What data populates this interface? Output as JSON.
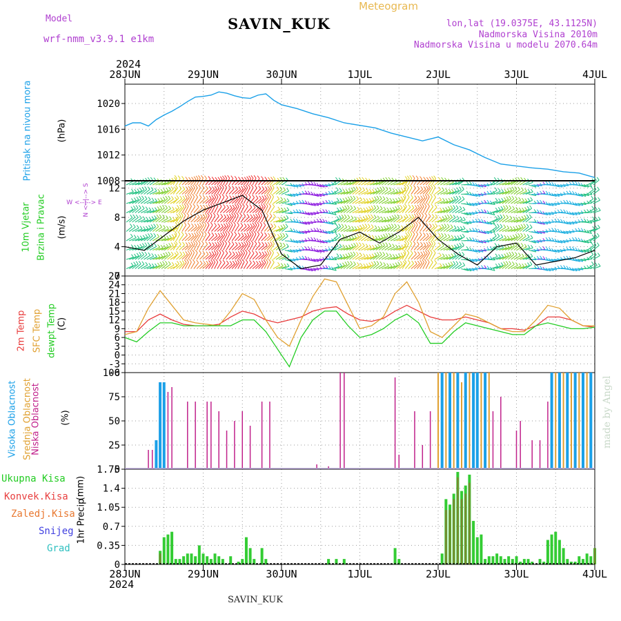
{
  "header": {
    "model_label": "Model",
    "model_name": "wrf-nmm_v3.9.1 e1km",
    "title": "SAVIN_KUK",
    "meteogram": "Meteogram",
    "coords": "lon,lat (19.0375E, 43.1125N)",
    "altitude": "Nadmorska Visina 2010m",
    "model_altitude": "Nadmorska Visina u modelu 2070.64m",
    "footer": "SAVIN_KUK",
    "credit": "made by Angel"
  },
  "time_axis": {
    "year": "2024",
    "labels": [
      "28JUN",
      "29JUN",
      "30JUN",
      "1JUL",
      "2JUL",
      "3JUL",
      "4JUL"
    ]
  },
  "colors": {
    "pressure": "#1aa0e8",
    "temp2m": "#e83a3a",
    "sfc_temp": "#e0a030",
    "dewpt": "#22cc22",
    "high_cloud": "#1aa0e8",
    "mid_cloud": "#e0a030",
    "low_cloud": "#c0208a",
    "total_precip": "#33cc33",
    "convective": "#e84040",
    "frozen": "#e87830",
    "snow": "#4040e0",
    "hail": "#30c0c0"
  },
  "panel_labels": {
    "pressure": {
      "name": "Pritisak na nivou mora",
      "unit": "(hPa)"
    },
    "wind": {
      "name1": "10m Vjetar",
      "name2": "Brzina i Pravac",
      "unit": "(m/s)",
      "compass_v": "N <--|--> S",
      "compass_h": "W <--|--> E"
    },
    "temp": {
      "t2m": "2m Temp",
      "sfc": "SFC Temp",
      "dew": "dewpt Temp",
      "unit": "(C)"
    },
    "cloud": {
      "high": "Visoka Oblacnost",
      "mid": "Srednja Oblacnost",
      "low": "Niska Oblacnost",
      "unit": "(%)"
    },
    "precip": {
      "total": "Ukupna Kisa",
      "conv": "Konvek.Kisa",
      "frozen": "Zaledj.Kisa",
      "snow": "Snijeg",
      "hail": "Grad",
      "name": "1hr Precip",
      "unit": "(mm)"
    }
  },
  "chart_data": [
    {
      "type": "line",
      "title": "Pritisak na nivou mora",
      "ylabel": "(hPa)",
      "ylim": [
        1008,
        1023
      ],
      "yticks": [
        1008,
        1012,
        1016,
        1020
      ],
      "x_days": [
        0,
        0.1,
        0.2,
        0.3,
        0.4,
        0.5,
        0.6,
        0.7,
        0.8,
        0.9,
        1.0,
        1.1,
        1.2,
        1.3,
        1.4,
        1.5,
        1.6,
        1.7,
        1.8,
        1.9,
        2.0,
        2.2,
        2.4,
        2.6,
        2.8,
        3.0,
        3.2,
        3.4,
        3.6,
        3.8,
        4.0,
        4.2,
        4.4,
        4.6,
        4.8,
        5.0,
        5.2,
        5.4,
        5.6,
        5.8,
        6.0
      ],
      "series": [
        {
          "values": [
            1016.5,
            1017.0,
            1017.0,
            1016.5,
            1017.5,
            1018.2,
            1018.8,
            1019.5,
            1020.3,
            1021.0,
            1021.1,
            1021.3,
            1021.8,
            1021.6,
            1021.2,
            1020.9,
            1020.8,
            1021.3,
            1021.5,
            1020.5,
            1019.8,
            1019.2,
            1018.4,
            1017.8,
            1017.0,
            1016.6,
            1016.2,
            1015.4,
            1014.8,
            1014.2,
            1014.8,
            1013.6,
            1012.8,
            1011.6,
            1010.6,
            1010.3,
            1010.0,
            1009.8,
            1009.4,
            1009.2,
            1008.5
          ]
        }
      ]
    },
    {
      "type": "line",
      "title": "10m Vjetar Brzina i Pravac",
      "ylabel": "(m/s)",
      "ylim": [
        0,
        13
      ],
      "yticks": [
        0,
        4,
        8,
        12
      ],
      "x_days": [
        0,
        0.25,
        0.5,
        0.75,
        1.0,
        1.25,
        1.5,
        1.75,
        2.0,
        2.25,
        2.5,
        2.75,
        3.0,
        3.25,
        3.5,
        3.75,
        4.0,
        4.25,
        4.5,
        4.75,
        5.0,
        5.25,
        5.5,
        5.75,
        6.0
      ],
      "series": [
        {
          "name": "speed",
          "values": [
            4,
            3.5,
            5.5,
            7.5,
            9,
            10,
            11,
            9,
            3,
            1,
            1.5,
            5,
            6,
            4.5,
            6,
            8,
            5,
            3,
            1.5,
            4,
            4.5,
            1.5,
            2,
            2.5,
            3.5
          ]
        }
      ]
    },
    {
      "type": "line",
      "title": "2m Temp / SFC Temp / dewpt Temp",
      "ylabel": "(C)",
      "ylim": [
        -6,
        27
      ],
      "yticks": [
        -6,
        -3,
        0,
        3,
        6,
        9,
        12,
        15,
        18,
        21,
        24,
        27
      ],
      "x_days": [
        0,
        0.15,
        0.3,
        0.45,
        0.6,
        0.75,
        0.9,
        1.05,
        1.2,
        1.35,
        1.5,
        1.65,
        1.8,
        1.95,
        2.1,
        2.25,
        2.4,
        2.55,
        2.7,
        2.85,
        3.0,
        3.15,
        3.3,
        3.45,
        3.6,
        3.75,
        3.9,
        4.05,
        4.2,
        4.35,
        4.5,
        4.65,
        4.8,
        4.95,
        5.1,
        5.25,
        5.4,
        5.55,
        5.7,
        5.85,
        6.0
      ],
      "series": [
        {
          "name": "2m Temp",
          "values": [
            8,
            8,
            12,
            14,
            12,
            10.5,
            10,
            10,
            10.5,
            13,
            15,
            14,
            12,
            11,
            12,
            13,
            15,
            16,
            16.5,
            14,
            12,
            11.5,
            12.5,
            15,
            17,
            15,
            13,
            12,
            12,
            13,
            12,
            11,
            9,
            9,
            8.5,
            10,
            13,
            13,
            12,
            10,
            9.5
          ]
        },
        {
          "name": "SFC Temp",
          "values": [
            7,
            8,
            16,
            22,
            17,
            12,
            11,
            10.5,
            10,
            15,
            21,
            19,
            12,
            6,
            3,
            12,
            20,
            26,
            25,
            17,
            9,
            10,
            13,
            21,
            25,
            18,
            8,
            6,
            10,
            14,
            13,
            11,
            9,
            8,
            8,
            12,
            17,
            16,
            12,
            10,
            10
          ]
        },
        {
          "name": "dewpt Temp",
          "values": [
            6,
            4.5,
            8,
            11,
            11,
            10,
            10,
            10,
            10,
            10,
            12,
            12,
            8,
            2,
            -4,
            6,
            12,
            15,
            15,
            10,
            6,
            7,
            9,
            12,
            14,
            11,
            4,
            4,
            8,
            11,
            10,
            9,
            8,
            7,
            7,
            10,
            11,
            10,
            9,
            9,
            9.5
          ]
        }
      ]
    },
    {
      "type": "bar",
      "title": "Visoka / Srednja / Niska Oblacnost",
      "ylabel": "(%)",
      "ylim": [
        0,
        100
      ],
      "yticks": [
        0,
        25,
        50,
        75,
        100
      ],
      "series": [
        {
          "name": "Niska Oblacnost",
          "x_days": [
            0.3,
            0.35,
            0.45,
            0.55,
            0.6,
            0.8,
            0.9,
            1.05,
            1.1,
            1.2,
            1.3,
            1.4,
            1.5,
            1.6,
            1.75,
            1.85,
            2.45,
            2.6,
            2.75,
            2.8,
            3.45,
            3.5,
            3.7,
            3.8,
            3.9,
            4.2,
            4.3,
            4.4,
            4.6,
            4.7,
            4.8,
            5.0,
            5.05,
            5.2,
            5.3,
            5.4,
            5.45,
            5.55,
            5.6,
            5.7,
            5.85,
            5.95
          ],
          "values": [
            20,
            20,
            90,
            80,
            85,
            70,
            70,
            70,
            70,
            60,
            40,
            50,
            60,
            45,
            70,
            70,
            5,
            3,
            100,
            100,
            95,
            15,
            60,
            25,
            60,
            70,
            85,
            90,
            75,
            60,
            75,
            40,
            50,
            30,
            30,
            70,
            65,
            60,
            90,
            100,
            100,
            100
          ]
        },
        {
          "name": "Visoka Oblacnost",
          "x_days": [
            0.4,
            0.45,
            0.5,
            4.05,
            4.15,
            4.25,
            4.35,
            4.45,
            4.5,
            4.6,
            5.45,
            5.55,
            5.65,
            5.75,
            5.85,
            5.95
          ],
          "values": [
            30,
            90,
            90,
            100,
            100,
            100,
            100,
            100,
            100,
            100,
            100,
            100,
            100,
            100,
            100,
            100
          ]
        },
        {
          "name": "Srednja Oblacnost",
          "x_days": [
            4.0,
            4.1,
            4.2,
            4.3,
            4.4,
            4.55,
            4.65,
            5.5,
            5.6,
            5.7,
            5.8,
            5.9
          ],
          "values": [
            100,
            100,
            100,
            90,
            100,
            100,
            100,
            100,
            100,
            100,
            100,
            100
          ]
        }
      ]
    },
    {
      "type": "bar",
      "title": "1hr Precip",
      "ylabel": "(mm)",
      "ylim": [
        0,
        1.75
      ],
      "yticks": [
        0,
        0.35,
        0.7,
        1.05,
        1.4,
        1.75
      ],
      "series": [
        {
          "name": "Ukupna Kisa",
          "x_days": [
            0.45,
            0.5,
            0.55,
            0.6,
            0.65,
            0.7,
            0.75,
            0.8,
            0.85,
            0.9,
            0.95,
            1.0,
            1.05,
            1.1,
            1.15,
            1.2,
            1.25,
            1.35,
            1.45,
            1.5,
            1.55,
            1.6,
            1.65,
            1.75,
            1.8,
            2.6,
            2.7,
            2.8,
            3.45,
            3.5,
            4.05,
            4.1,
            4.15,
            4.2,
            4.25,
            4.3,
            4.35,
            4.4,
            4.45,
            4.5,
            4.55,
            4.6,
            4.65,
            4.7,
            4.75,
            4.8,
            4.85,
            4.9,
            4.95,
            5.0,
            5.05,
            5.1,
            5.15,
            5.2,
            5.3,
            5.35,
            5.4,
            5.45,
            5.5,
            5.55,
            5.6,
            5.65,
            5.7,
            5.75,
            5.8,
            5.85,
            5.9,
            5.95,
            6.0
          ],
          "values": [
            0.25,
            0.5,
            0.55,
            0.6,
            0.1,
            0.1,
            0.15,
            0.2,
            0.2,
            0.15,
            0.35,
            0.2,
            0.15,
            0.1,
            0.2,
            0.15,
            0.1,
            0.15,
            0.05,
            0.1,
            0.5,
            0.3,
            0.1,
            0.3,
            0.1,
            0.1,
            0.1,
            0.1,
            0.3,
            0.1,
            0.2,
            1.2,
            1.1,
            1.3,
            1.7,
            1.35,
            1.45,
            1.65,
            0.8,
            0.5,
            0.55,
            0.1,
            0.15,
            0.15,
            0.2,
            0.15,
            0.1,
            0.15,
            0.1,
            0.15,
            0.05,
            0.1,
            0.1,
            0.05,
            0.1,
            0.05,
            0.45,
            0.55,
            0.6,
            0.45,
            0.3,
            0.1,
            0.05,
            0.05,
            0.15,
            0.1,
            0.2,
            0.15,
            0.3
          ]
        },
        {
          "name": "Konvek.Kisa",
          "x_days": [
            0.45,
            4.1,
            4.15,
            4.2,
            4.25,
            4.3,
            4.35,
            4.4,
            6.0
          ],
          "values": [
            0.2,
            1.0,
            1.0,
            1.2,
            1.6,
            1.2,
            1.3,
            1.5,
            0.3
          ]
        }
      ]
    }
  ]
}
